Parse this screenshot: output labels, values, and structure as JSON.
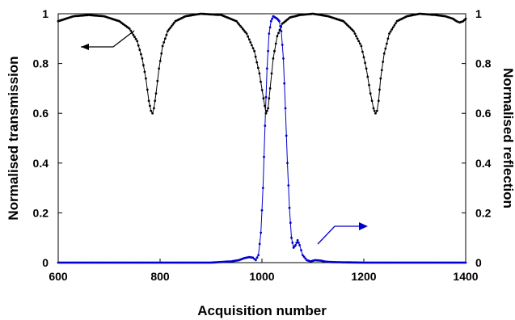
{
  "chart_data": {
    "type": "scatter",
    "title": "",
    "xlabel": "Acquisition number",
    "ylabel_left": "Normalised transmission",
    "ylabel_right": "Normalised reflection",
    "xlim": [
      600,
      1400
    ],
    "ylim_left": [
      0,
      1
    ],
    "ylim_right": [
      0,
      1
    ],
    "x_ticks": [
      600,
      800,
      1000,
      1200,
      1400
    ],
    "y_ticks_left": [
      "0",
      "0.2",
      "0.4",
      "0.6",
      "0.8",
      "1"
    ],
    "y_ticks_right": [
      "0",
      "0.2",
      "0.4",
      "0.6",
      "0.8",
      "1"
    ],
    "y_tick_values": [
      0,
      0.2,
      0.4,
      0.6,
      0.8,
      1
    ],
    "grid": false,
    "series": [
      {
        "axis": "left",
        "color": "#000000",
        "x": [
          600,
          630,
          660,
          690,
          720,
          740,
          755,
          765,
          772,
          778,
          782,
          785,
          788,
          792,
          798,
          805,
          815,
          830,
          850,
          880,
          920,
          950,
          970,
          985,
          995,
          1003,
          1008,
          1012,
          1016,
          1022,
          1030,
          1040,
          1055,
          1075,
          1100,
          1130,
          1160,
          1180,
          1195,
          1205,
          1213,
          1219,
          1223,
          1226,
          1229,
          1233,
          1240,
          1250,
          1265,
          1285,
          1310,
          1340,
          1360,
          1375,
          1382,
          1388,
          1395,
          1400
        ],
        "y": [
          0.97,
          0.99,
          0.995,
          0.99,
          0.97,
          0.94,
          0.89,
          0.82,
          0.74,
          0.65,
          0.61,
          0.6,
          0.62,
          0.68,
          0.78,
          0.87,
          0.93,
          0.97,
          0.99,
          1.0,
          0.995,
          0.97,
          0.92,
          0.85,
          0.76,
          0.66,
          0.6,
          0.62,
          0.7,
          0.82,
          0.91,
          0.96,
          0.985,
          0.995,
          1.0,
          0.99,
          0.97,
          0.93,
          0.87,
          0.78,
          0.68,
          0.62,
          0.6,
          0.61,
          0.65,
          0.74,
          0.84,
          0.92,
          0.97,
          0.99,
          1.0,
          0.995,
          0.99,
          0.98,
          0.97,
          0.965,
          0.97,
          0.98
        ]
      },
      {
        "axis": "right",
        "color": "#0000cc",
        "x": [
          600,
          700,
          800,
          900,
          940,
          955,
          965,
          975,
          982,
          988,
          993,
          998,
          1002,
          1006,
          1010,
          1014,
          1018,
          1022,
          1026,
          1030,
          1034,
          1038,
          1042,
          1046,
          1050,
          1054,
          1058,
          1062,
          1066,
          1070,
          1074,
          1080,
          1088,
          1095,
          1105,
          1115,
          1125,
          1140,
          1200,
          1300,
          1400
        ],
        "y": [
          0.0,
          0.0,
          0.0,
          0.0,
          0.005,
          0.01,
          0.018,
          0.022,
          0.02,
          0.01,
          0.03,
          0.12,
          0.3,
          0.55,
          0.78,
          0.92,
          0.97,
          0.99,
          0.985,
          0.98,
          0.97,
          0.93,
          0.82,
          0.62,
          0.4,
          0.22,
          0.1,
          0.06,
          0.07,
          0.09,
          0.07,
          0.03,
          0.01,
          0.005,
          0.01,
          0.008,
          0.004,
          0.002,
          0.0,
          0.0,
          0.0
        ]
      }
    ]
  }
}
